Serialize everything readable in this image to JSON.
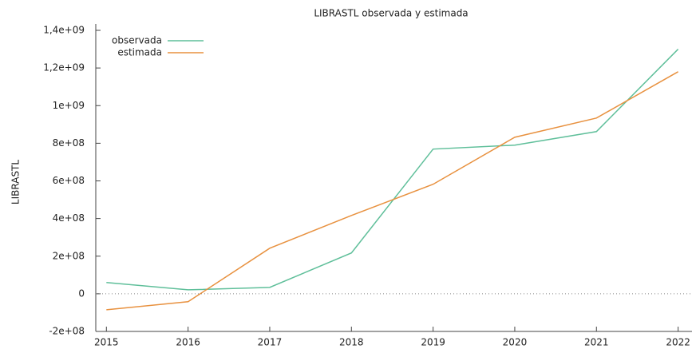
{
  "chart_data": {
    "type": "line",
    "title": "LIBRASTL observada y estimada",
    "ylabel": "LIBRASTL",
    "x": [
      2015,
      2016,
      2017,
      2018,
      2019,
      2020,
      2021,
      2022
    ],
    "series": [
      {
        "name": "observada",
        "color": "#5fbf9a",
        "values": [
          60000000,
          21000000,
          34000000,
          217000000,
          769000000,
          790000000,
          862000000,
          1300000000
        ]
      },
      {
        "name": "estimada",
        "color": "#e8913f",
        "values": [
          -85000000,
          -42000000,
          242000000,
          416000000,
          582000000,
          832000000,
          934000000,
          1180000000
        ]
      }
    ],
    "xlim": [
      2014.87,
      2022.17
    ],
    "xticks": [
      2015,
      2016,
      2017,
      2018,
      2019,
      2020,
      2021,
      2022
    ],
    "ylim": [
      -200000000,
      1400000000
    ],
    "yticks": [
      {
        "value": -200000000,
        "label": "-2e+08"
      },
      0,
      {
        "value": 200000000,
        "label": "2e+08"
      },
      {
        "value": 400000000,
        "label": "4e+08"
      },
      {
        "value": 600000000,
        "label": "6e+08"
      },
      {
        "value": 800000000,
        "label": "8e+08"
      },
      {
        "value": 1000000000,
        "label": "1e+09"
      },
      {
        "value": 1200000000,
        "label": "1,2e+09"
      },
      {
        "value": 1400000000,
        "label": "1,4e+09"
      }
    ],
    "legend": "upper left",
    "zero_line": true
  }
}
